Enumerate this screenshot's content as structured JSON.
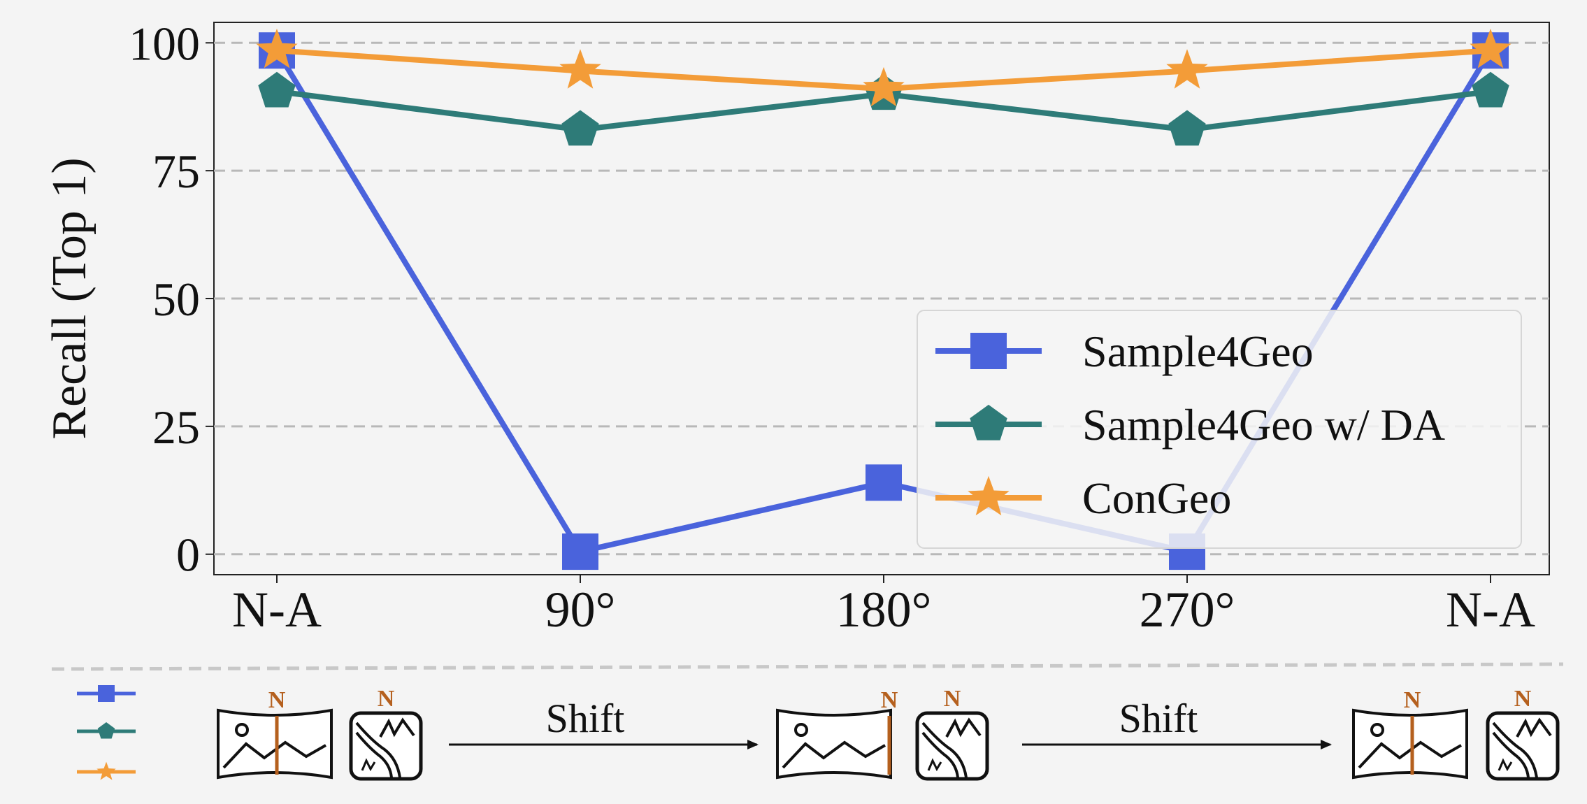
{
  "chart_data": {
    "type": "line",
    "categories": [
      "N-A",
      "90°",
      "180°",
      "270°",
      "N-A"
    ],
    "ylabel": "Recall (Top 1)",
    "xlabel": "",
    "ylim": [
      -4,
      104
    ],
    "yticks": [
      0,
      25,
      50,
      75,
      100
    ],
    "grid": "horizontal dashed",
    "legend_position": "lower-right",
    "series": [
      {
        "name": "Sample4Geo",
        "values": [
          98.5,
          0.5,
          14,
          0.5,
          98.5
        ],
        "color": "#4a63dc",
        "marker": "square"
      },
      {
        "name": "Sample4Geo w/ DA",
        "values": [
          90.5,
          83,
          90,
          83,
          90.5
        ],
        "color": "#2e7b78",
        "marker": "pentagon"
      },
      {
        "name": "ConGeo",
        "values": [
          98.5,
          94.5,
          91,
          94.5,
          98.5
        ],
        "color": "#f39c38",
        "marker": "star"
      }
    ]
  },
  "schematic": {
    "shift_label_1": "Shift",
    "shift_label_2": "Shift",
    "north_label": "N",
    "north_color": "#b5601e",
    "legend_markers": [
      "square",
      "pentagon",
      "star"
    ]
  }
}
